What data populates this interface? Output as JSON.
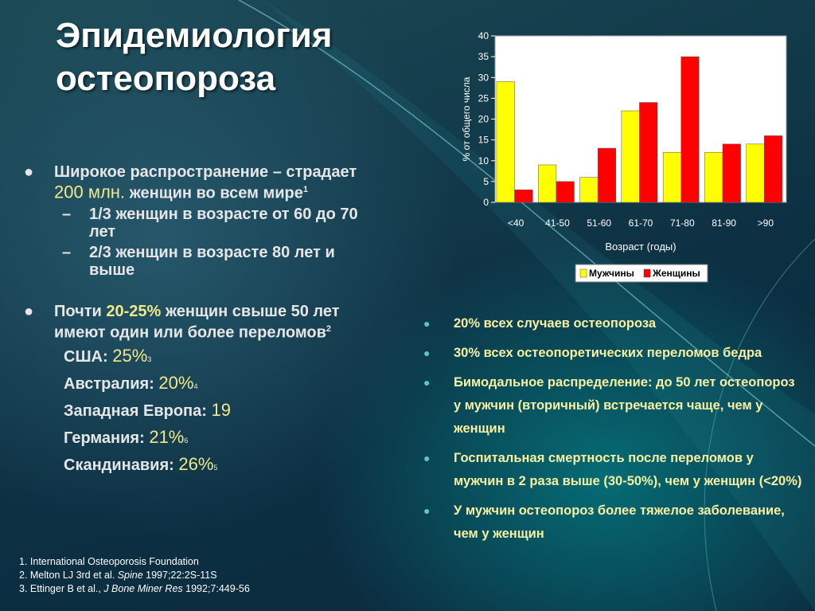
{
  "title": {
    "line1": "Эпидемиология",
    "line2": "остеопороза"
  },
  "left": {
    "bullet1": {
      "text_before": "Широкое распространение – страдает ",
      "highlight": "200 млн.",
      "text_after": " женщин во всем мире",
      "ref": "1",
      "subs": [
        "1/3 женщин в возрасте от 60 до 70 лет",
        "2/3 женщин в возрасте 80 лет и выше"
      ]
    },
    "bullet2": {
      "text_before": "Почти ",
      "highlight": "20-25%",
      "text_after": " женщин свыше 50 лет имеют один или более переломов",
      "ref": "2"
    },
    "countries": [
      {
        "name": "США:",
        "value": "25%",
        "ref": "3"
      },
      {
        "name": "Австралия:",
        "value": "20%",
        "ref": "4"
      },
      {
        "name": "Западная Европа:",
        "value": "19",
        "ref": ""
      },
      {
        "name": "Германия:",
        "value": "21%",
        "ref": "6"
      },
      {
        "name": "Скандинавия:",
        "value": "26%",
        "ref": "5"
      }
    ]
  },
  "references": [
    {
      "pre": "1. International Osteoporosis Foundation",
      "journal": "",
      "post": ""
    },
    {
      "pre": "2. Melton LJ 3rd et al. ",
      "journal": "Spine",
      "post": " 1997;22:2S-11S"
    },
    {
      "pre": "3. Ettinger B et al., ",
      "journal": "J Bone Miner Res",
      "post": " 1992;7:449-56"
    }
  ],
  "right_bullets": [
    "20% всех случаев остеопороза",
    "30% всех остеопоретических переломов бедра",
    "Бимодальное распределение: до 50 лет остеопороз у мужчин (вторичный) встречается чаще, чем у женщин",
    "Госпитальная смертность после переломов у мужчин в 2 раза выше (30-50%), чем у женщин (<20%)",
    "У мужчин остеопороз более тяжелое заболевание, чем у женщин"
  ],
  "chart_data": {
    "type": "bar",
    "categories": [
      "<40",
      "41-50",
      "51-60",
      "61-70",
      "71-80",
      "81-90",
      ">90"
    ],
    "series": [
      {
        "name": "Мужчины",
        "color": "#ffff00",
        "values": [
          29,
          9,
          6,
          22,
          12,
          12,
          14
        ]
      },
      {
        "name": "Женщины",
        "color": "#ff0000",
        "values": [
          3,
          5,
          13,
          24,
          35,
          14,
          16
        ]
      }
    ],
    "title": "",
    "xlabel": "Возраст (годы)",
    "ylabel": "% от общего числа",
    "ylim": [
      0,
      40
    ],
    "yticks": [
      0,
      5,
      10,
      15,
      20,
      25,
      30,
      35,
      40
    ],
    "legend": "bottom"
  }
}
